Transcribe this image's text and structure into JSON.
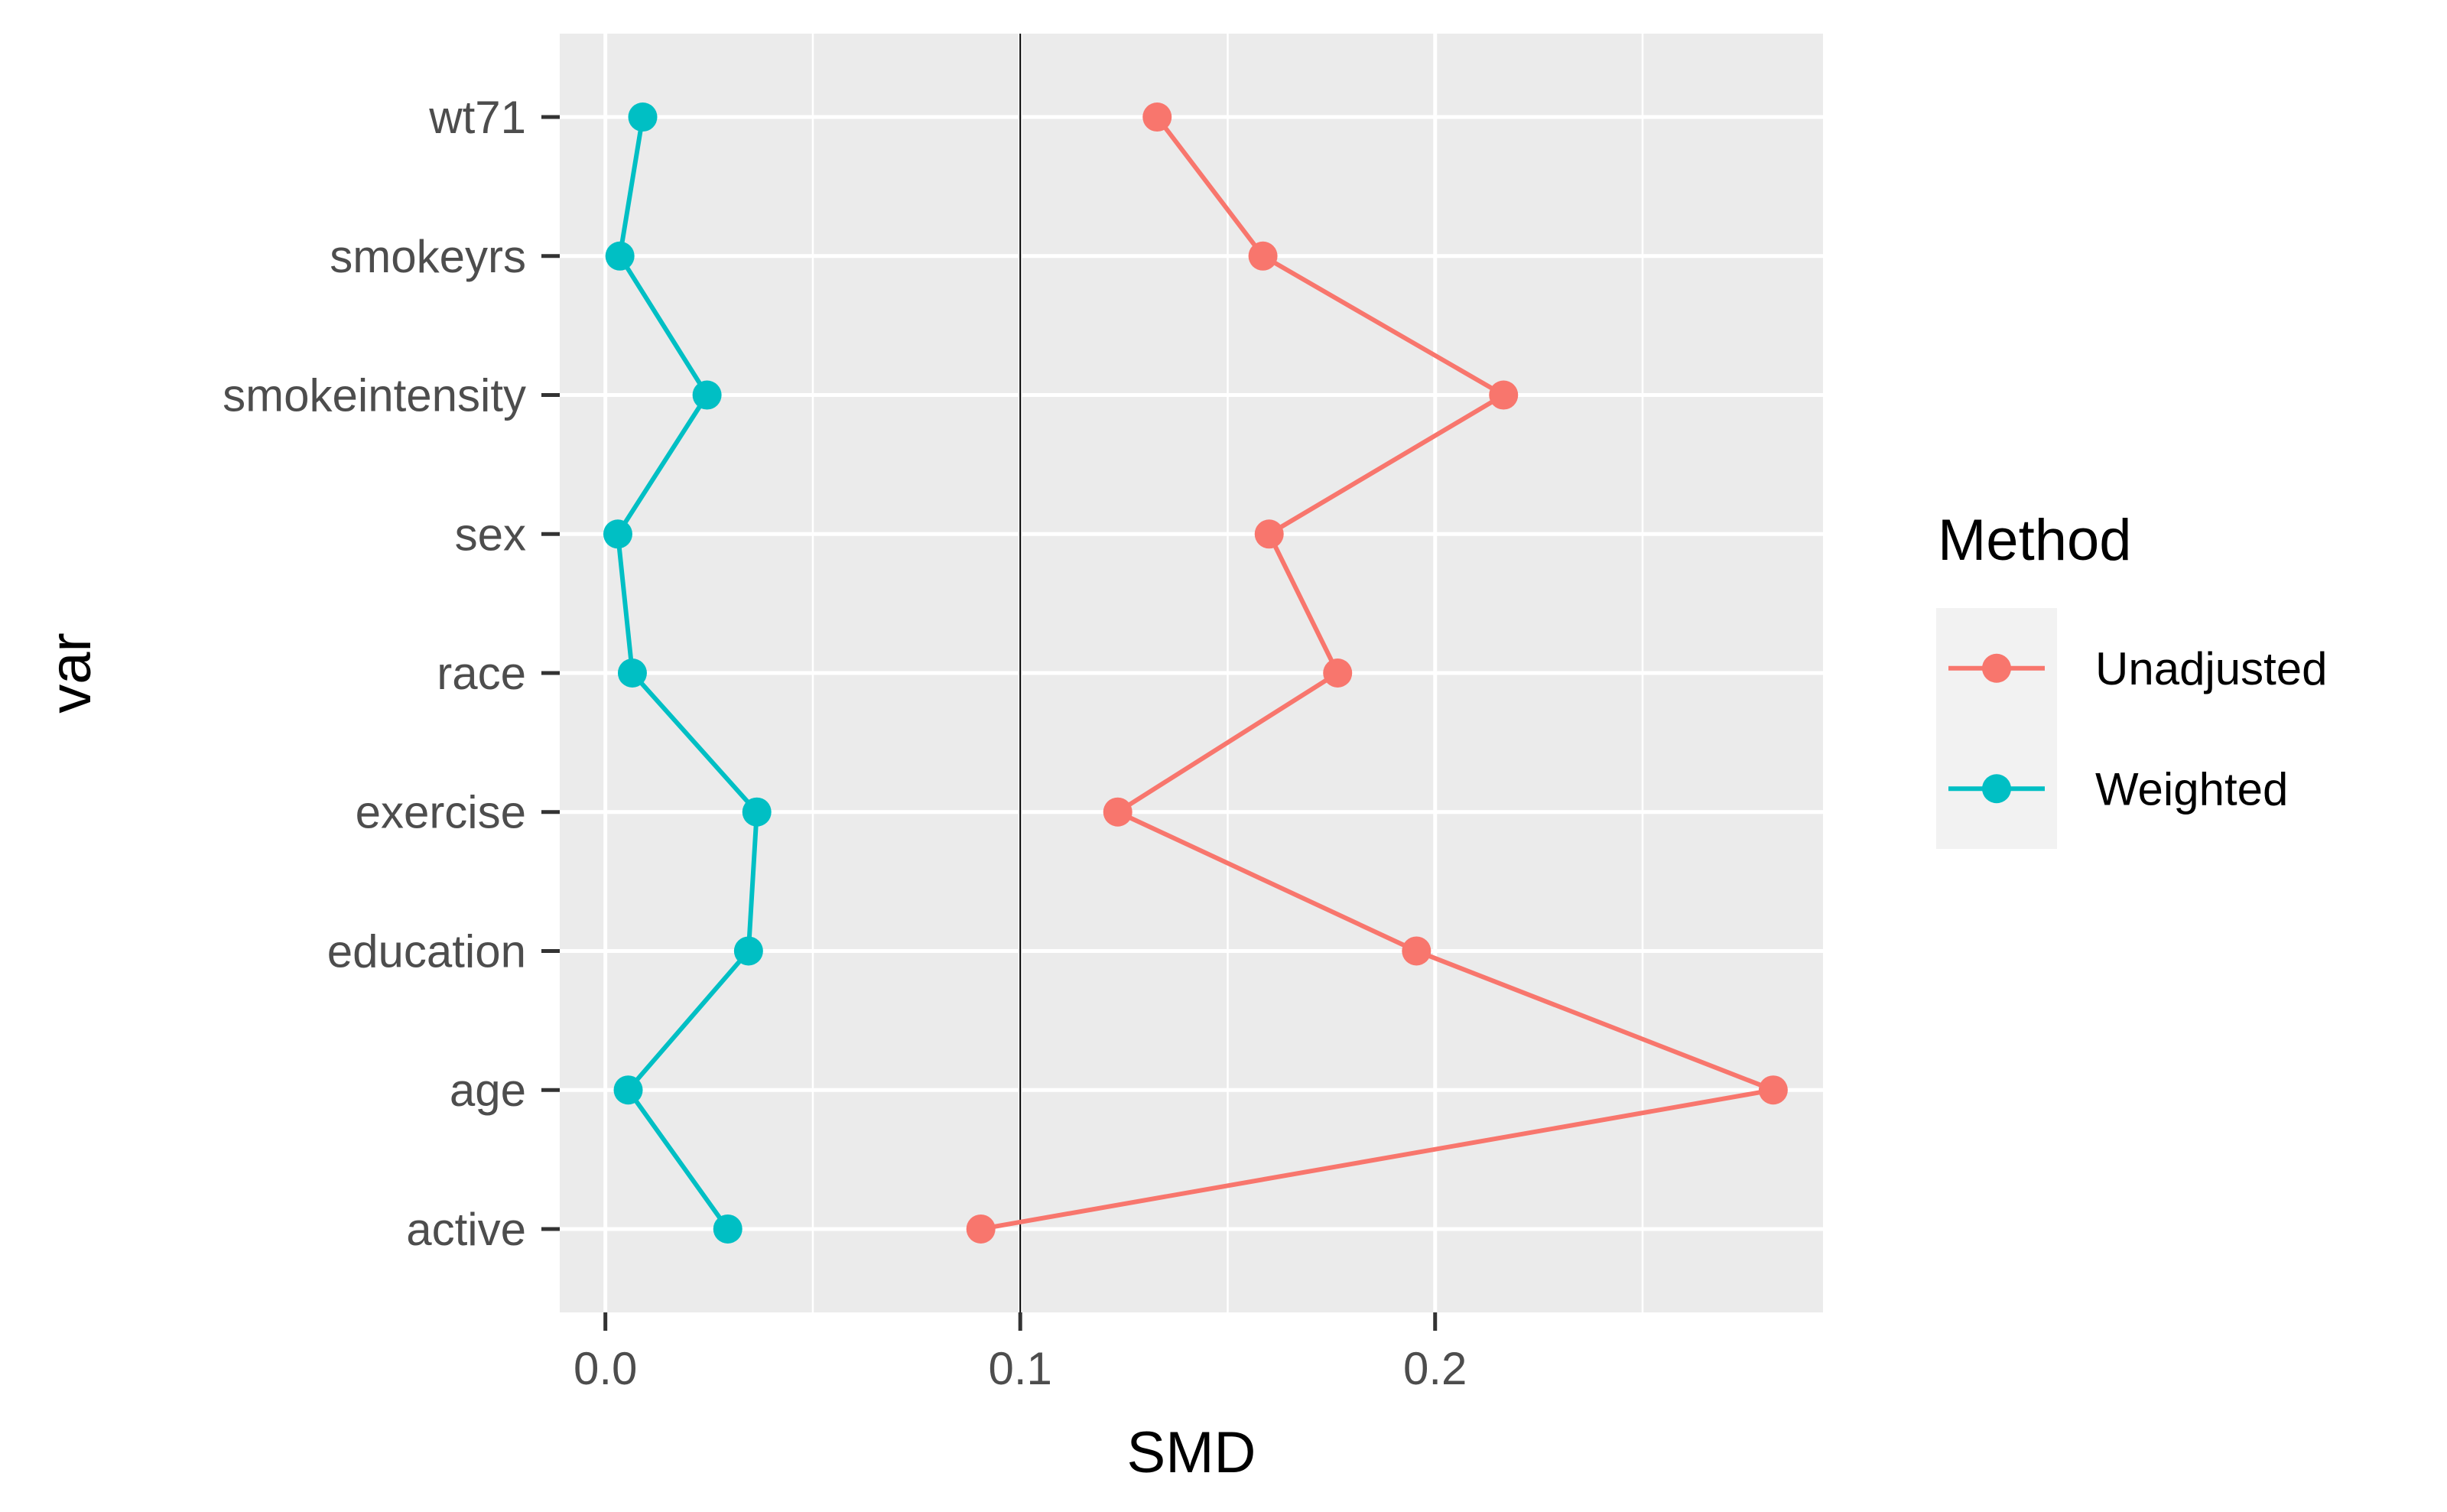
{
  "chart_data": {
    "type": "line",
    "title": "",
    "xlabel": "SMD",
    "ylabel": "var",
    "xlim": [
      -0.011,
      0.2935
    ],
    "x_ticks": [
      0.0,
      0.1,
      0.2
    ],
    "x_tick_labels": [
      "0.0",
      "0.1",
      "0.2"
    ],
    "x_minor_ticks": [
      0.05,
      0.15,
      0.25
    ],
    "categories": [
      "active",
      "age",
      "education",
      "exercise",
      "race",
      "sex",
      "smokeintensity",
      "smokeyrs",
      "wt71"
    ],
    "reference_line": {
      "x": 0.1
    },
    "grid": true,
    "legend": {
      "title": "Method",
      "position": "right"
    },
    "series": [
      {
        "name": "Unadjusted",
        "color": "#F8766D",
        "values": [
          0.0905,
          0.2815,
          0.1955,
          0.1235,
          0.1765,
          0.16,
          0.2165,
          0.1585,
          0.133
        ]
      },
      {
        "name": "Weighted",
        "color": "#00BFC4",
        "values": [
          0.0295,
          0.0055,
          0.0345,
          0.0365,
          0.0065,
          0.003,
          0.0245,
          0.0035,
          0.009
        ]
      }
    ]
  }
}
